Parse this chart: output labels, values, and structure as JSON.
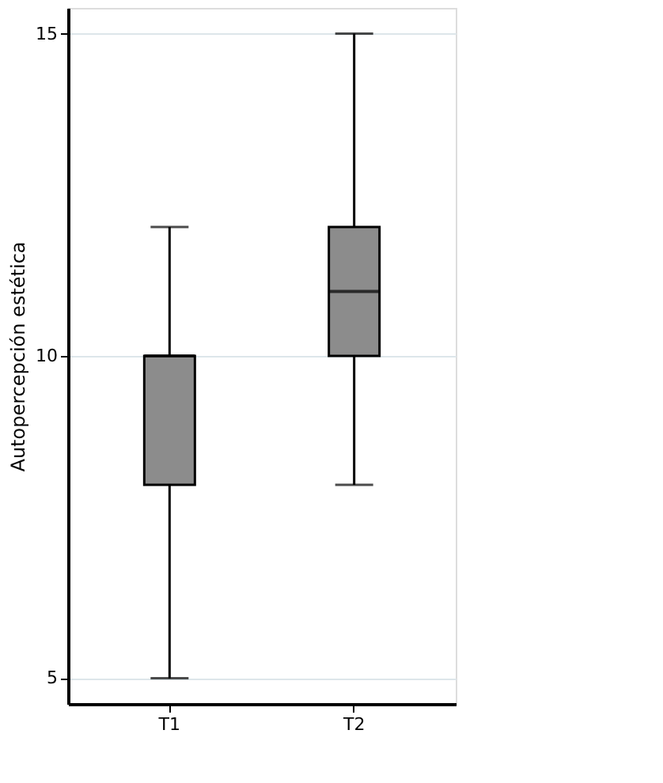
{
  "chart_data": {
    "type": "box",
    "ylabel": "Autopercepción estética",
    "categories": [
      "T1",
      "T2"
    ],
    "boxes": [
      {
        "low": 5,
        "q1": 8,
        "median": 10,
        "q3": 10,
        "high": 12
      },
      {
        "low": 8,
        "q1": 10,
        "median": 11,
        "q3": 12,
        "high": 15
      }
    ],
    "color": "#8c8c8c",
    "ylim": [
      4.6,
      15.4
    ],
    "yticks": [
      5,
      10,
      15
    ],
    "grid": "y"
  }
}
